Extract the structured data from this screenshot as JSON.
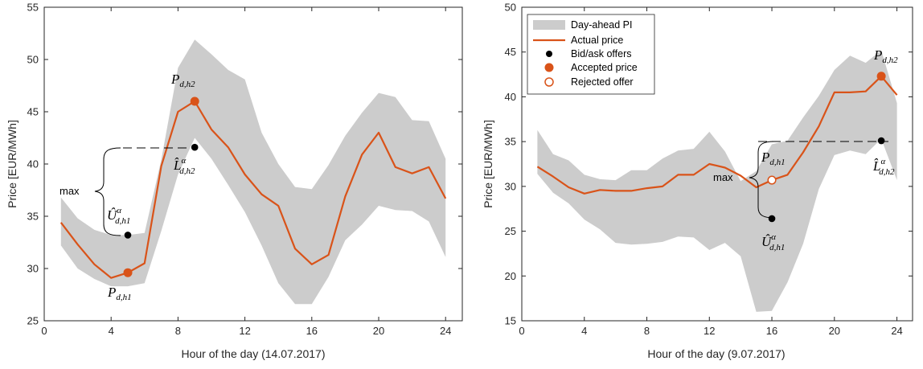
{
  "colors": {
    "band": "#cccccc",
    "line": "#d95319",
    "dot": "#000000",
    "axis": "#262626"
  },
  "charts": [
    {
      "ylabel": "Price [EUR/MWh]",
      "xlabel": "Hour of the day (14.07.2017)",
      "xticks": [
        "0",
        "4",
        "8",
        "12",
        "16",
        "20",
        "24"
      ],
      "yticks": [
        "25",
        "30",
        "35",
        "40",
        "45",
        "50",
        "55"
      ],
      "annotations": {
        "p_low": "P",
        "p_low_sub": "d,h1",
        "p_high": "P",
        "p_high_sub": "d,h2",
        "l_hat": "L̂",
        "l_hat_sub": "d,h2",
        "l_hat_sup": "α",
        "u_hat": "Û",
        "u_hat_sub": "d,h1",
        "u_hat_sup": "α",
        "max_label": "max"
      }
    },
    {
      "ylabel": "Price [EUR/MWh]",
      "xlabel": "Hour of the day (9.07.2017)",
      "xticks": [
        "0",
        "4",
        "8",
        "12",
        "16",
        "20",
        "24"
      ],
      "yticks": [
        "15",
        "20",
        "25",
        "30",
        "35",
        "40",
        "45",
        "50"
      ],
      "annotations": {
        "p_mid": "P",
        "p_mid_sub": "d,h1",
        "p_high": "P",
        "p_high_sub": "d,h2",
        "l_hat": "L̂",
        "l_hat_sub": "d,h2",
        "l_hat_sup": "α",
        "u_hat": "Û",
        "u_hat_sub": "d,h1",
        "u_hat_sup": "α",
        "max_label": "max"
      },
      "legend": {
        "band": "Day-ahead PI",
        "line": "Actual price",
        "bid": "Bid/ask offers",
        "accepted": "Accepted price",
        "rejected": "Rejected offer"
      }
    }
  ],
  "chart_data": [
    {
      "type": "line",
      "xlabel": "Hour of the day (14.07.2017)",
      "ylabel": "Price [EUR/MWh]",
      "xlim": [
        0,
        25
      ],
      "ylim": [
        25,
        55
      ],
      "x": [
        1,
        2,
        3,
        4,
        5,
        6,
        7,
        8,
        9,
        10,
        11,
        12,
        13,
        14,
        15,
        16,
        17,
        18,
        19,
        20,
        21,
        22,
        23,
        24
      ],
      "series": [
        {
          "name": "Actual price",
          "values": [
            34.4,
            32.3,
            30.4,
            29.1,
            29.6,
            30.5,
            39.8,
            45.0,
            46.0,
            43.3,
            41.6,
            39.0,
            37.1,
            36.0,
            31.9,
            30.4,
            31.3,
            36.9,
            40.9,
            43.0,
            39.7,
            39.1,
            39.7,
            36.7
          ]
        },
        {
          "name": "Day-ahead PI lower",
          "values": [
            32.2,
            30.0,
            29.0,
            28.3,
            28.3,
            28.6,
            33.6,
            39.0,
            42.5,
            40.5,
            38.0,
            35.4,
            32.2,
            28.6,
            26.6,
            26.6,
            29.2,
            32.7,
            34.2,
            36.0,
            35.6,
            35.5,
            34.5,
            31.1
          ]
        },
        {
          "name": "Day-ahead PI upper",
          "values": [
            36.8,
            34.8,
            33.7,
            33.2,
            33.2,
            33.4,
            40.4,
            49.2,
            51.9,
            50.5,
            49.0,
            48.1,
            43.0,
            40.0,
            37.8,
            37.6,
            39.9,
            42.7,
            44.9,
            46.8,
            46.4,
            44.2,
            44.1,
            40.5
          ]
        }
      ],
      "points": {
        "bid": [
          {
            "x": 5,
            "y": 33.2
          },
          {
            "x": 9,
            "y": 41.6
          }
        ],
        "accepted": [
          {
            "x": 5,
            "y": 29.6
          },
          {
            "x": 9,
            "y": 46.0
          }
        ]
      }
    },
    {
      "type": "line",
      "xlabel": "Hour of the day (9.07.2017)",
      "ylabel": "Price [EUR/MWh]",
      "xlim": [
        0,
        25
      ],
      "ylim": [
        15,
        50
      ],
      "legend": "top-left",
      "x": [
        1,
        2,
        3,
        4,
        5,
        6,
        7,
        8,
        9,
        10,
        11,
        12,
        13,
        14,
        15,
        16,
        17,
        18,
        19,
        20,
        21,
        22,
        23,
        24
      ],
      "series": [
        {
          "name": "Actual price",
          "values": [
            32.2,
            31.1,
            29.9,
            29.2,
            29.6,
            29.5,
            29.5,
            29.8,
            30.0,
            31.3,
            31.3,
            32.5,
            32.1,
            31.2,
            29.9,
            30.7,
            31.3,
            33.8,
            36.7,
            40.5,
            40.5,
            40.6,
            42.3,
            40.2
          ]
        },
        {
          "name": "Day-ahead PI lower",
          "values": [
            31.4,
            29.3,
            28.1,
            26.3,
            25.2,
            23.7,
            23.5,
            23.6,
            23.8,
            24.4,
            24.3,
            22.9,
            23.7,
            22.2,
            16.0,
            16.1,
            19.3,
            23.6,
            29.7,
            33.5,
            34.0,
            33.6,
            35.3,
            30.7
          ]
        },
        {
          "name": "Day-ahead PI upper",
          "values": [
            36.3,
            33.6,
            32.9,
            31.3,
            30.8,
            30.7,
            31.8,
            31.8,
            33.1,
            34.0,
            34.2,
            36.1,
            33.9,
            30.6,
            31.7,
            34.7,
            35.1,
            37.7,
            40.1,
            43.0,
            44.6,
            43.8,
            45.2,
            39.3
          ]
        }
      ],
      "points": {
        "bid": [
          {
            "x": 16,
            "y": 26.4
          },
          {
            "x": 23,
            "y": 35.1
          }
        ],
        "accepted": [
          {
            "x": 23,
            "y": 42.3
          }
        ],
        "rejected": [
          {
            "x": 16,
            "y": 30.7
          }
        ]
      }
    }
  ]
}
